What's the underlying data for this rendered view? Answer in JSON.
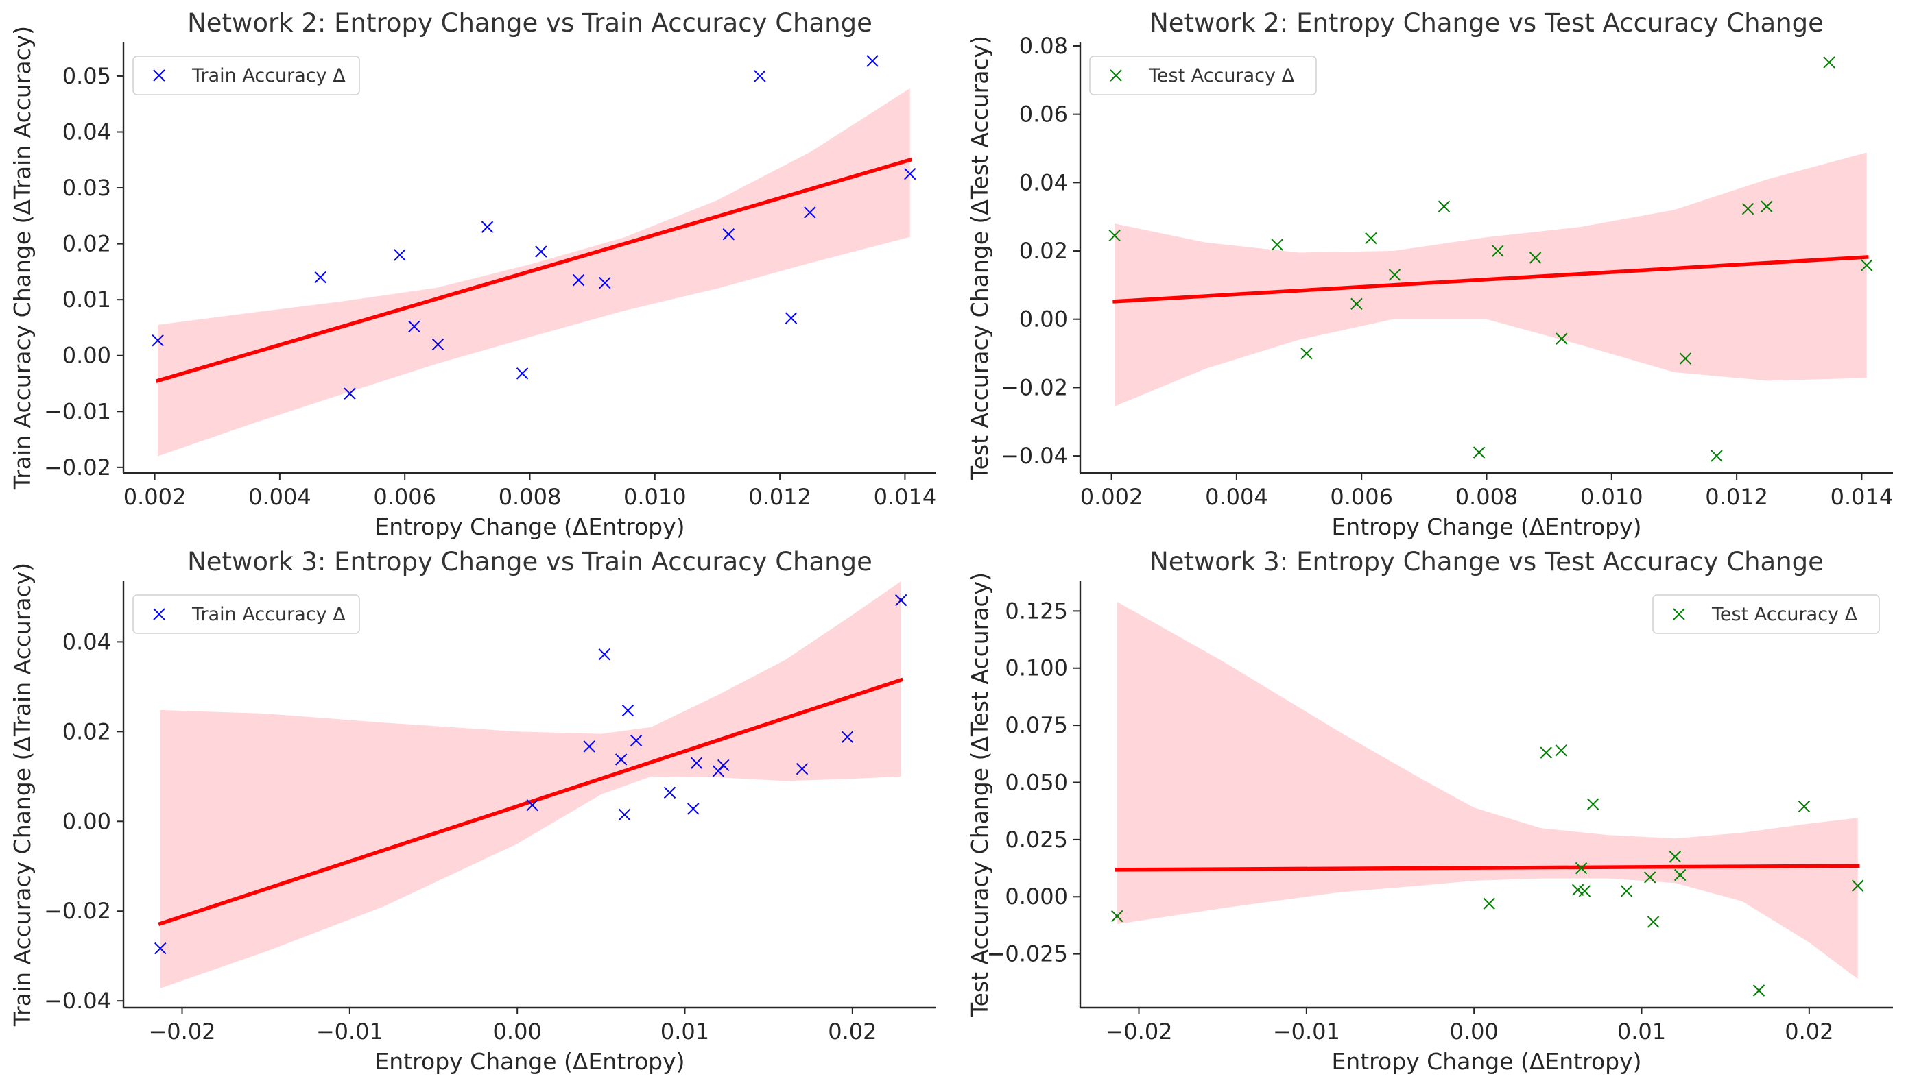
{
  "colors": {
    "train_marker": "#0000ff",
    "test_marker": "#008000",
    "fit_line": "#ff0000",
    "confidence_band": "#ffd6d9"
  },
  "chart_data": [
    {
      "type": "scatter",
      "title": "Network 2: Entropy Change vs Train Accuracy Change",
      "xlabel": "Entropy Change (ΔEntropy)",
      "ylabel": "Train Accuracy Change (ΔTrain Accuracy)",
      "xlim": [
        0.0015,
        0.0145
      ],
      "ylim": [
        -0.021,
        0.056
      ],
      "xticks": [
        0.002,
        0.004,
        0.006,
        0.008,
        0.01,
        0.012,
        0.014
      ],
      "xtick_labels": [
        "0.002",
        "0.004",
        "0.006",
        "0.008",
        "0.010",
        "0.012",
        "0.014"
      ],
      "yticks": [
        -0.02,
        -0.01,
        0.0,
        0.01,
        0.02,
        0.03,
        0.04,
        0.05
      ],
      "ytick_labels": [
        "−0.02",
        "−0.01",
        "0.00",
        "0.01",
        "0.02",
        "0.03",
        "0.04",
        "0.05"
      ],
      "legend": {
        "entries": [
          "Train Accuracy Δ"
        ],
        "placement": "upper-left"
      },
      "marker": "x",
      "series": [
        {
          "name": "Train Accuracy Δ",
          "color": "#0000ff",
          "x": [
            0.00205,
            0.00465,
            0.00512,
            0.00592,
            0.00615,
            0.00653,
            0.00732,
            0.00788,
            0.00818,
            0.00878,
            0.0092,
            0.01118,
            0.01168,
            0.01218,
            0.01248,
            0.01348,
            0.01408
          ],
          "y": [
            0.0027,
            0.014,
            -0.0068,
            0.018,
            0.0052,
            0.002,
            0.023,
            -0.0032,
            0.0186,
            0.0135,
            0.013,
            0.0217,
            0.05,
            0.0067,
            0.0256,
            0.0527,
            0.0325
          ]
        }
      ],
      "fit_line": {
        "x": [
          0.00205,
          0.01408
        ],
        "y": [
          -0.0045,
          0.035
        ]
      },
      "confidence_band": {
        "x": [
          0.00205,
          0.0035,
          0.005,
          0.0065,
          0.008,
          0.0095,
          0.011,
          0.0125,
          0.01408
        ],
        "lower": [
          -0.018,
          -0.0124,
          -0.0069,
          -0.0015,
          0.0033,
          0.008,
          0.012,
          0.0166,
          0.0212
        ],
        "upper": [
          0.0055,
          0.0076,
          0.0097,
          0.0121,
          0.0163,
          0.0211,
          0.0278,
          0.0365,
          0.0478
        ]
      }
    },
    {
      "type": "scatter",
      "title": "Network 2: Entropy Change vs Test Accuracy Change",
      "xlabel": "Entropy Change (ΔEntropy)",
      "ylabel": "Test Accuracy Change (ΔTest Accuracy)",
      "xlim": [
        0.0015,
        0.0145
      ],
      "ylim": [
        -0.045,
        0.081
      ],
      "xticks": [
        0.002,
        0.004,
        0.006,
        0.008,
        0.01,
        0.012,
        0.014
      ],
      "xtick_labels": [
        "0.002",
        "0.004",
        "0.006",
        "0.008",
        "0.010",
        "0.012",
        "0.014"
      ],
      "yticks": [
        -0.04,
        -0.02,
        0.0,
        0.02,
        0.04,
        0.06,
        0.08
      ],
      "ytick_labels": [
        "−0.04",
        "−0.02",
        "0.00",
        "0.02",
        "0.04",
        "0.06",
        "0.08"
      ],
      "legend": {
        "entries": [
          "Test Accuracy Δ"
        ],
        "placement": "upper-left"
      },
      "marker": "x",
      "series": [
        {
          "name": "Test Accuracy Δ",
          "color": "#008000",
          "x": [
            0.00205,
            0.00465,
            0.00512,
            0.00592,
            0.00615,
            0.00653,
            0.00732,
            0.00788,
            0.00818,
            0.00878,
            0.0092,
            0.01118,
            0.01168,
            0.01218,
            0.01248,
            0.01348,
            0.01408
          ],
          "y": [
            0.0245,
            0.0218,
            -0.01,
            0.0045,
            0.0237,
            0.013,
            0.033,
            -0.039,
            0.02,
            0.018,
            -0.0057,
            -0.0115,
            -0.04,
            0.0323,
            0.033,
            0.0752,
            0.0158
          ]
        }
      ],
      "fit_line": {
        "x": [
          0.00205,
          0.01408
        ],
        "y": [
          0.0052,
          0.0182
        ]
      },
      "confidence_band": {
        "x": [
          0.00205,
          0.0035,
          0.005,
          0.0065,
          0.008,
          0.0095,
          0.011,
          0.0125,
          0.01408
        ],
        "lower": [
          -0.0255,
          -0.0145,
          -0.006,
          0.0,
          0.0,
          -0.0075,
          -0.0155,
          -0.018,
          -0.0172
        ],
        "upper": [
          0.028,
          0.0225,
          0.0195,
          0.02,
          0.024,
          0.027,
          0.032,
          0.041,
          0.0488
        ]
      }
    },
    {
      "type": "scatter",
      "title": "Network 3: Entropy Change vs Train Accuracy Change",
      "xlabel": "Entropy Change (ΔEntropy)",
      "ylabel": "Train Accuracy Change (ΔTrain Accuracy)",
      "xlim": [
        -0.0235,
        0.025
      ],
      "ylim": [
        -0.0415,
        0.0535
      ],
      "xticks": [
        -0.02,
        -0.01,
        0.0,
        0.01,
        0.02
      ],
      "xtick_labels": [
        "−0.02",
        "−0.01",
        "0.00",
        "0.01",
        "0.02"
      ],
      "yticks": [
        -0.04,
        -0.02,
        0.0,
        0.02,
        0.04
      ],
      "ytick_labels": [
        "−0.04",
        "−0.02",
        "0.00",
        "0.02",
        "0.04"
      ],
      "legend": {
        "entries": [
          "Train Accuracy Δ"
        ],
        "placement": "upper-left"
      },
      "marker": "x",
      "series": [
        {
          "name": "Train Accuracy Δ",
          "color": "#0000ff",
          "x": [
            -0.0213,
            0.0009,
            0.0043,
            0.0052,
            0.0062,
            0.0064,
            0.0066,
            0.0071,
            0.0091,
            0.0105,
            0.0107,
            0.012,
            0.0123,
            0.017,
            0.0197,
            0.0229
          ],
          "y": [
            -0.0283,
            0.0036,
            0.0167,
            0.0372,
            0.0138,
            0.0015,
            0.0247,
            0.018,
            0.0064,
            0.0028,
            0.013,
            0.0112,
            0.0125,
            0.0117,
            0.0188,
            0.0493
          ]
        }
      ],
      "fit_line": {
        "x": [
          -0.0213,
          0.0229
        ],
        "y": [
          -0.0228,
          0.0315
        ]
      },
      "confidence_band": {
        "x": [
          -0.0213,
          -0.015,
          -0.008,
          0.0,
          0.005,
          0.008,
          0.012,
          0.016,
          0.02,
          0.0229
        ],
        "lower": [
          -0.0372,
          -0.029,
          -0.019,
          -0.005,
          0.006,
          0.01,
          0.0098,
          0.009,
          0.0095,
          0.01
        ],
        "upper": [
          0.0248,
          0.024,
          0.022,
          0.02,
          0.0195,
          0.021,
          0.0282,
          0.036,
          0.046,
          0.0535
        ]
      }
    },
    {
      "type": "scatter",
      "title": "Network 3: Entropy Change vs Test Accuracy Change",
      "xlabel": "Entropy Change (ΔEntropy)",
      "ylabel": "Test Accuracy Change (ΔTest Accuracy)",
      "xlim": [
        -0.0235,
        0.025
      ],
      "ylim": [
        -0.0485,
        0.138
      ],
      "xticks": [
        -0.02,
        -0.01,
        0.0,
        0.01,
        0.02
      ],
      "xtick_labels": [
        "−0.02",
        "−0.01",
        "0.00",
        "0.01",
        "0.02"
      ],
      "yticks": [
        -0.025,
        0.0,
        0.025,
        0.05,
        0.075,
        0.1,
        0.125
      ],
      "ytick_labels": [
        "−0.025",
        "0.000",
        "0.025",
        "0.050",
        "0.075",
        "0.100",
        "0.125"
      ],
      "legend": {
        "entries": [
          "Test Accuracy Δ"
        ],
        "placement": "upper-right"
      },
      "marker": "x",
      "series": [
        {
          "name": "Test Accuracy Δ",
          "color": "#008000",
          "x": [
            -0.0213,
            0.0009,
            0.0043,
            0.0052,
            0.0062,
            0.0064,
            0.0066,
            0.0071,
            0.0091,
            0.0105,
            0.0107,
            0.012,
            0.0123,
            0.017,
            0.0197,
            0.0229
          ],
          "y": [
            -0.0085,
            -0.003,
            0.063,
            0.064,
            0.003,
            0.0125,
            0.0025,
            0.0405,
            0.0025,
            0.0085,
            -0.011,
            0.0175,
            0.0095,
            -0.041,
            0.0395,
            0.0048
          ]
        }
      ],
      "fit_line": {
        "x": [
          -0.0213,
          0.0229
        ],
        "y": [
          0.0118,
          0.0135
        ]
      },
      "confidence_band": {
        "x": [
          -0.0213,
          -0.015,
          -0.008,
          -0.003,
          0.0,
          0.004,
          0.008,
          0.012,
          0.016,
          0.02,
          0.0229
        ],
        "lower": [
          -0.012,
          -0.005,
          0.002,
          0.005,
          0.007,
          0.008,
          0.008,
          0.006,
          -0.002,
          -0.02,
          -0.036
        ],
        "upper": [
          0.129,
          0.103,
          0.072,
          0.051,
          0.039,
          0.03,
          0.027,
          0.0255,
          0.028,
          0.032,
          0.0345
        ]
      }
    }
  ]
}
